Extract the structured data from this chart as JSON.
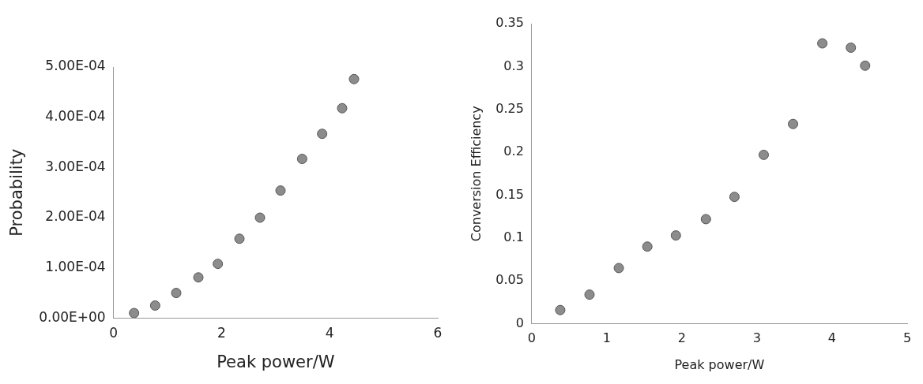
{
  "chart_data": [
    {
      "type": "scatter",
      "xlabel": "Peak power/W",
      "ylabel": "Probability",
      "x": [
        0.38,
        0.77,
        1.16,
        1.57,
        1.93,
        2.33,
        2.71,
        3.09,
        3.49,
        3.86,
        4.23,
        4.45
      ],
      "series": [
        {
          "color": "#8c8c8c",
          "values": [
            1e-05,
            2.5e-05,
            5e-05,
            8.1e-05,
            0.000108,
            0.000158,
            0.0002,
            0.000254,
            0.000317,
            0.000367,
            0.000418,
            0.000476
          ]
        }
      ],
      "xlim": [
        0,
        6
      ],
      "xticks": [
        0,
        2,
        4,
        6
      ],
      "ylim": [
        0,
        0.0005
      ],
      "yticks": [
        {
          "value": 0,
          "label": "0.00E+00"
        },
        {
          "value": 0.0001,
          "label": "1.00E-04"
        },
        {
          "value": 0.0002,
          "label": "2.00E-04"
        },
        {
          "value": 0.0003,
          "label": "3.00E-04"
        },
        {
          "value": 0.0004,
          "label": "4.00E-04"
        },
        {
          "value": 0.0005,
          "label": "5.00E-04"
        }
      ],
      "grid": false,
      "legend": false,
      "marker": "circle"
    },
    {
      "type": "scatter",
      "xlabel": "Peak power/W",
      "ylabel": "Conversion Efficiency",
      "x": [
        0.38,
        0.77,
        1.16,
        1.54,
        1.92,
        2.32,
        2.7,
        3.09,
        3.48,
        3.87,
        4.25,
        4.44
      ],
      "series": [
        {
          "color": "#8c8c8c",
          "values": [
            0.016,
            0.034,
            0.065,
            0.09,
            0.103,
            0.122,
            0.148,
            0.197,
            0.233,
            0.327,
            0.322,
            0.301
          ]
        }
      ],
      "xlim": [
        0,
        5
      ],
      "xticks": [
        0,
        1,
        2,
        3,
        4,
        5
      ],
      "ylim": [
        0,
        0.35
      ],
      "yticks": [
        0,
        0.05,
        0.1,
        0.15,
        0.2,
        0.25,
        0.3,
        0.35
      ],
      "grid": false,
      "legend": false,
      "marker": "circle"
    }
  ]
}
